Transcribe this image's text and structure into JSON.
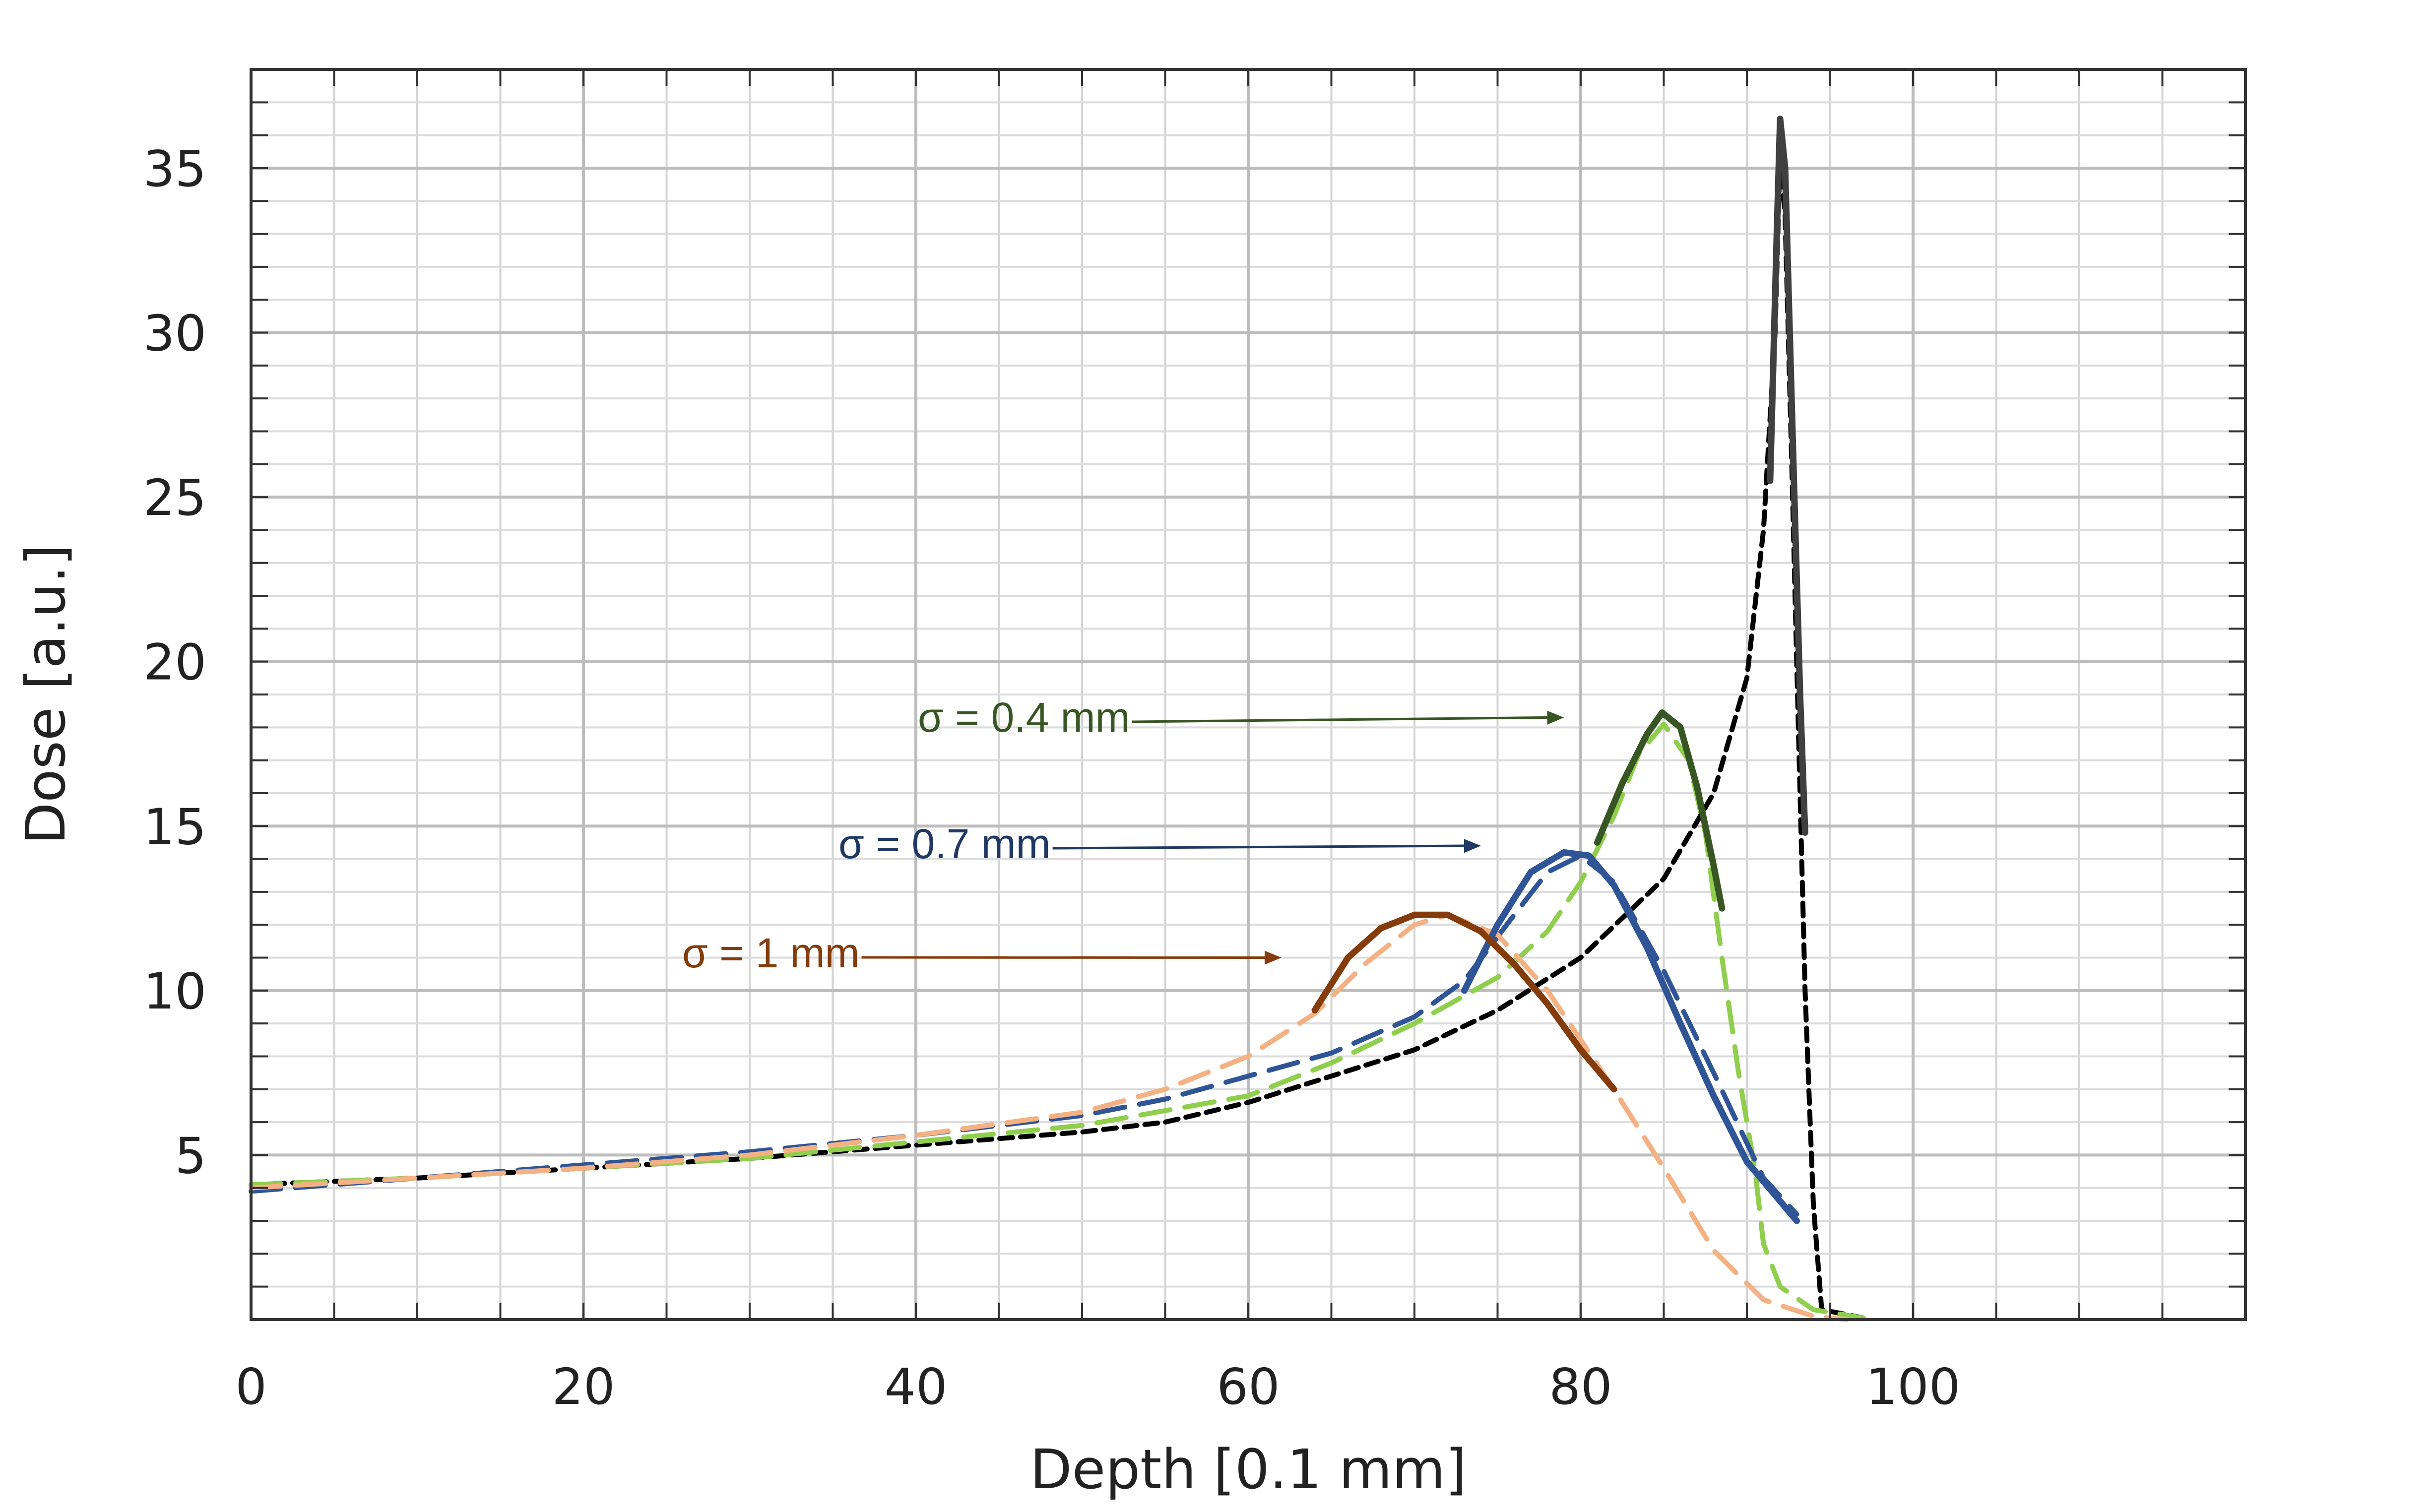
{
  "chart_data": {
    "type": "line",
    "title": "",
    "xlabel": "Depth [0.1 mm]",
    "ylabel": "Dose [a.u.]",
    "xlim": [
      0,
      120
    ],
    "ylim": [
      0,
      38
    ],
    "x_ticks": [
      0,
      20,
      40,
      60,
      80,
      100
    ],
    "y_ticks": [
      5,
      10,
      15,
      20,
      25,
      30,
      35
    ],
    "grid": true,
    "legend": "none",
    "series": [
      {
        "color": "#000000",
        "dash": "dotted",
        "points": [
          [
            0,
            4.1
          ],
          [
            10,
            4.3
          ],
          [
            20,
            4.6
          ],
          [
            30,
            4.9
          ],
          [
            40,
            5.3
          ],
          [
            50,
            5.7
          ],
          [
            55,
            6.0
          ],
          [
            60,
            6.6
          ],
          [
            65,
            7.4
          ],
          [
            70,
            8.2
          ],
          [
            75,
            9.4
          ],
          [
            80,
            11.0
          ],
          [
            85,
            13.4
          ],
          [
            88,
            16.0
          ],
          [
            90,
            19.5
          ],
          [
            91,
            24.0
          ],
          [
            91.7,
            30.0
          ],
          [
            92,
            35.5
          ],
          [
            92.3,
            33.5
          ],
          [
            92.7,
            26.0
          ],
          [
            93.1,
            18.0
          ],
          [
            93.5,
            10.0
          ],
          [
            94,
            3.5
          ],
          [
            94.5,
            0.3
          ],
          [
            97,
            0.05
          ]
        ]
      },
      {
        "color": "#8fcf4d",
        "dash": "dashed",
        "points": [
          [
            0,
            4.1
          ],
          [
            10,
            4.3
          ],
          [
            20,
            4.6
          ],
          [
            30,
            4.9
          ],
          [
            40,
            5.4
          ],
          [
            50,
            5.9
          ],
          [
            60,
            6.8
          ],
          [
            65,
            7.8
          ],
          [
            70,
            9.0
          ],
          [
            75,
            10.4
          ],
          [
            78,
            11.8
          ],
          [
            80,
            13.3
          ],
          [
            82,
            15.3
          ],
          [
            83.5,
            17.2
          ],
          [
            85,
            18.1
          ],
          [
            86.5,
            17.0
          ],
          [
            87.5,
            14.8
          ],
          [
            88.5,
            11.0
          ],
          [
            89.5,
            7.5
          ],
          [
            90.5,
            4.5
          ],
          [
            91,
            2.3
          ],
          [
            92,
            1.0
          ],
          [
            94,
            0.3
          ],
          [
            97,
            0.05
          ]
        ]
      },
      {
        "color": "#2f5597",
        "dash": "dashed",
        "points": [
          [
            0,
            3.9
          ],
          [
            10,
            4.3
          ],
          [
            20,
            4.7
          ],
          [
            30,
            5.1
          ],
          [
            40,
            5.6
          ],
          [
            50,
            6.2
          ],
          [
            55,
            6.7
          ],
          [
            60,
            7.4
          ],
          [
            65,
            8.1
          ],
          [
            70,
            9.2
          ],
          [
            73,
            10.3
          ],
          [
            76,
            12.3
          ],
          [
            78,
            13.6
          ],
          [
            80,
            14.1
          ],
          [
            82,
            13.3
          ],
          [
            85,
            10.6
          ],
          [
            88,
            7.5
          ],
          [
            91,
            4.3
          ],
          [
            93,
            3.2
          ]
        ]
      },
      {
        "color": "#f4b183",
        "dash": "dashed",
        "points": [
          [
            0,
            4.0
          ],
          [
            10,
            4.3
          ],
          [
            20,
            4.6
          ],
          [
            30,
            5.0
          ],
          [
            40,
            5.6
          ],
          [
            50,
            6.3
          ],
          [
            55,
            7.0
          ],
          [
            60,
            8.0
          ],
          [
            64,
            9.3
          ],
          [
            67,
            10.8
          ],
          [
            70,
            12.0
          ],
          [
            72,
            12.3
          ],
          [
            75,
            11.7
          ],
          [
            78,
            10.0
          ],
          [
            82,
            7.0
          ],
          [
            85,
            4.6
          ],
          [
            88,
            2.1
          ],
          [
            91,
            0.6
          ],
          [
            94,
            0.1
          ],
          [
            96,
            0.0
          ]
        ]
      },
      {
        "color": "#404040",
        "dash": "solid",
        "points": [
          [
            91.4,
            25.5
          ],
          [
            91.8,
            33.0
          ],
          [
            92,
            36.5
          ],
          [
            92.3,
            35.0
          ],
          [
            92.8,
            26.0
          ],
          [
            93.2,
            19.0
          ],
          [
            93.5,
            14.8
          ]
        ]
      },
      {
        "color": "#375623",
        "dash": "solid",
        "points": [
          [
            81,
            14.5
          ],
          [
            82.5,
            16.3
          ],
          [
            84,
            17.8
          ],
          [
            84.9,
            18.45
          ],
          [
            86,
            18.0
          ],
          [
            87,
            16.2
          ],
          [
            88,
            13.8
          ],
          [
            88.5,
            12.5
          ]
        ]
      },
      {
        "color": "#2f5597",
        "dash": "solid",
        "points": [
          [
            73,
            10.0
          ],
          [
            75,
            12.0
          ],
          [
            77,
            13.6
          ],
          [
            79,
            14.2
          ],
          [
            80.5,
            14.1
          ],
          [
            82,
            13.2
          ],
          [
            84,
            11.3
          ],
          [
            86,
            9.0
          ],
          [
            88,
            6.8
          ],
          [
            90,
            4.8
          ],
          [
            92,
            3.6
          ],
          [
            93,
            3.0
          ]
        ]
      },
      {
        "color": "#843c0c",
        "dash": "solid",
        "points": [
          [
            64,
            9.4
          ],
          [
            66,
            11.0
          ],
          [
            68,
            11.9
          ],
          [
            70,
            12.3
          ],
          [
            72,
            12.3
          ],
          [
            74,
            11.8
          ],
          [
            76,
            10.8
          ],
          [
            78,
            9.6
          ],
          [
            80,
            8.2
          ],
          [
            82,
            7.0
          ]
        ]
      }
    ],
    "annotations": [
      {
        "label": "σ = 0.4 mm",
        "color": "#375623",
        "target": [
          79,
          18.3
        ]
      },
      {
        "label": "σ = 0.7 mm",
        "color": "#1f3864",
        "target": [
          74,
          14.4
        ]
      },
      {
        "label": "σ = 1 mm",
        "color": "#843c0c",
        "target": [
          62,
          11.0
        ]
      }
    ]
  }
}
